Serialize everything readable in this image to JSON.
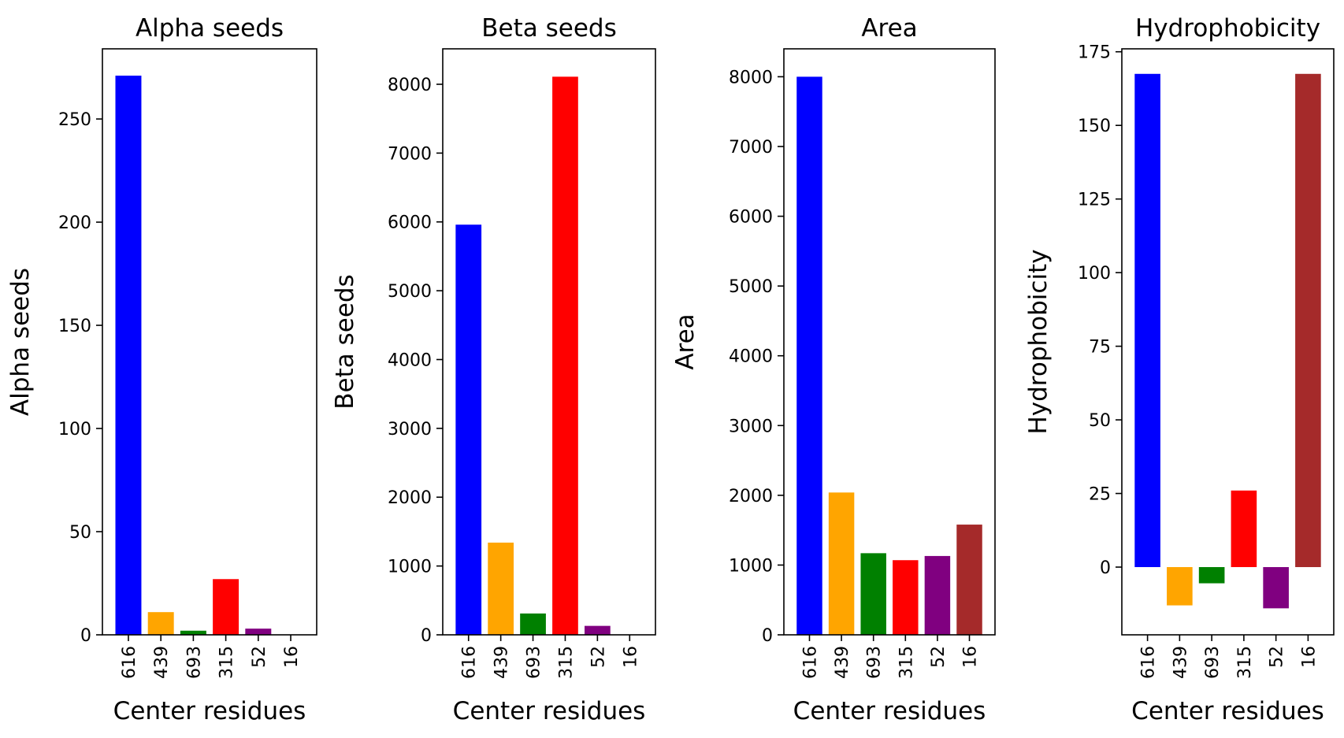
{
  "chart_data": [
    {
      "type": "bar",
      "title": "Alpha seeds",
      "xlabel": "Center residues",
      "ylabel": "Alpha seeds",
      "categories": [
        "616",
        "439",
        "693",
        "315",
        "52",
        "16"
      ],
      "values": [
        271,
        11,
        2,
        27,
        3,
        0
      ],
      "colors": [
        "#0000ff",
        "#ffa500",
        "#008000",
        "#ff0000",
        "#800080",
        "#a52a2a"
      ],
      "ylim": [
        0,
        284
      ],
      "yticks": [
        0,
        50,
        100,
        150,
        200,
        250
      ],
      "ytick_labels": [
        "0",
        "50",
        "100",
        "150",
        "200",
        "250"
      ]
    },
    {
      "type": "bar",
      "title": "Beta seeds",
      "xlabel": "Center residues",
      "ylabel": "Beta seeds",
      "categories": [
        "616",
        "439",
        "693",
        "315",
        "52",
        "16"
      ],
      "values": [
        5960,
        1340,
        310,
        8110,
        130,
        0
      ],
      "colors": [
        "#0000ff",
        "#ffa500",
        "#008000",
        "#ff0000",
        "#800080",
        "#a52a2a"
      ],
      "ylim": [
        0,
        8515
      ],
      "yticks": [
        0,
        1000,
        2000,
        3000,
        4000,
        5000,
        6000,
        7000,
        8000
      ],
      "ytick_labels": [
        "0",
        "1000",
        "2000",
        "3000",
        "4000",
        "5000",
        "6000",
        "7000",
        "8000"
      ]
    },
    {
      "type": "bar",
      "title": "Area",
      "xlabel": "Center residues",
      "ylabel": "Area",
      "categories": [
        "616",
        "439",
        "693",
        "315",
        "52",
        "16"
      ],
      "values": [
        8000,
        2040,
        1170,
        1070,
        1130,
        1580
      ],
      "colors": [
        "#0000ff",
        "#ffa500",
        "#008000",
        "#ff0000",
        "#800080",
        "#a52a2a"
      ],
      "ylim": [
        0,
        8400
      ],
      "yticks": [
        0,
        1000,
        2000,
        3000,
        4000,
        5000,
        6000,
        7000,
        8000
      ],
      "ytick_labels": [
        "0",
        "1000",
        "2000",
        "3000",
        "4000",
        "5000",
        "6000",
        "7000",
        "8000"
      ]
    },
    {
      "type": "bar",
      "title": "Hydrophobicity",
      "xlabel": "Center residues",
      "ylabel": "Hydrophobicity",
      "categories": [
        "616",
        "439",
        "693",
        "315",
        "52",
        "16"
      ],
      "values": [
        167.5,
        -13,
        -5.5,
        26,
        -14,
        167.5
      ],
      "colors": [
        "#0000ff",
        "#ffa500",
        "#008000",
        "#ff0000",
        "#800080",
        "#a52a2a"
      ],
      "ylim": [
        -23,
        176
      ],
      "yticks": [
        0,
        25,
        50,
        75,
        100,
        125,
        150,
        175
      ],
      "ytick_labels": [
        "0",
        "25",
        "50",
        "75",
        "100",
        "125",
        "150",
        "175"
      ]
    }
  ]
}
